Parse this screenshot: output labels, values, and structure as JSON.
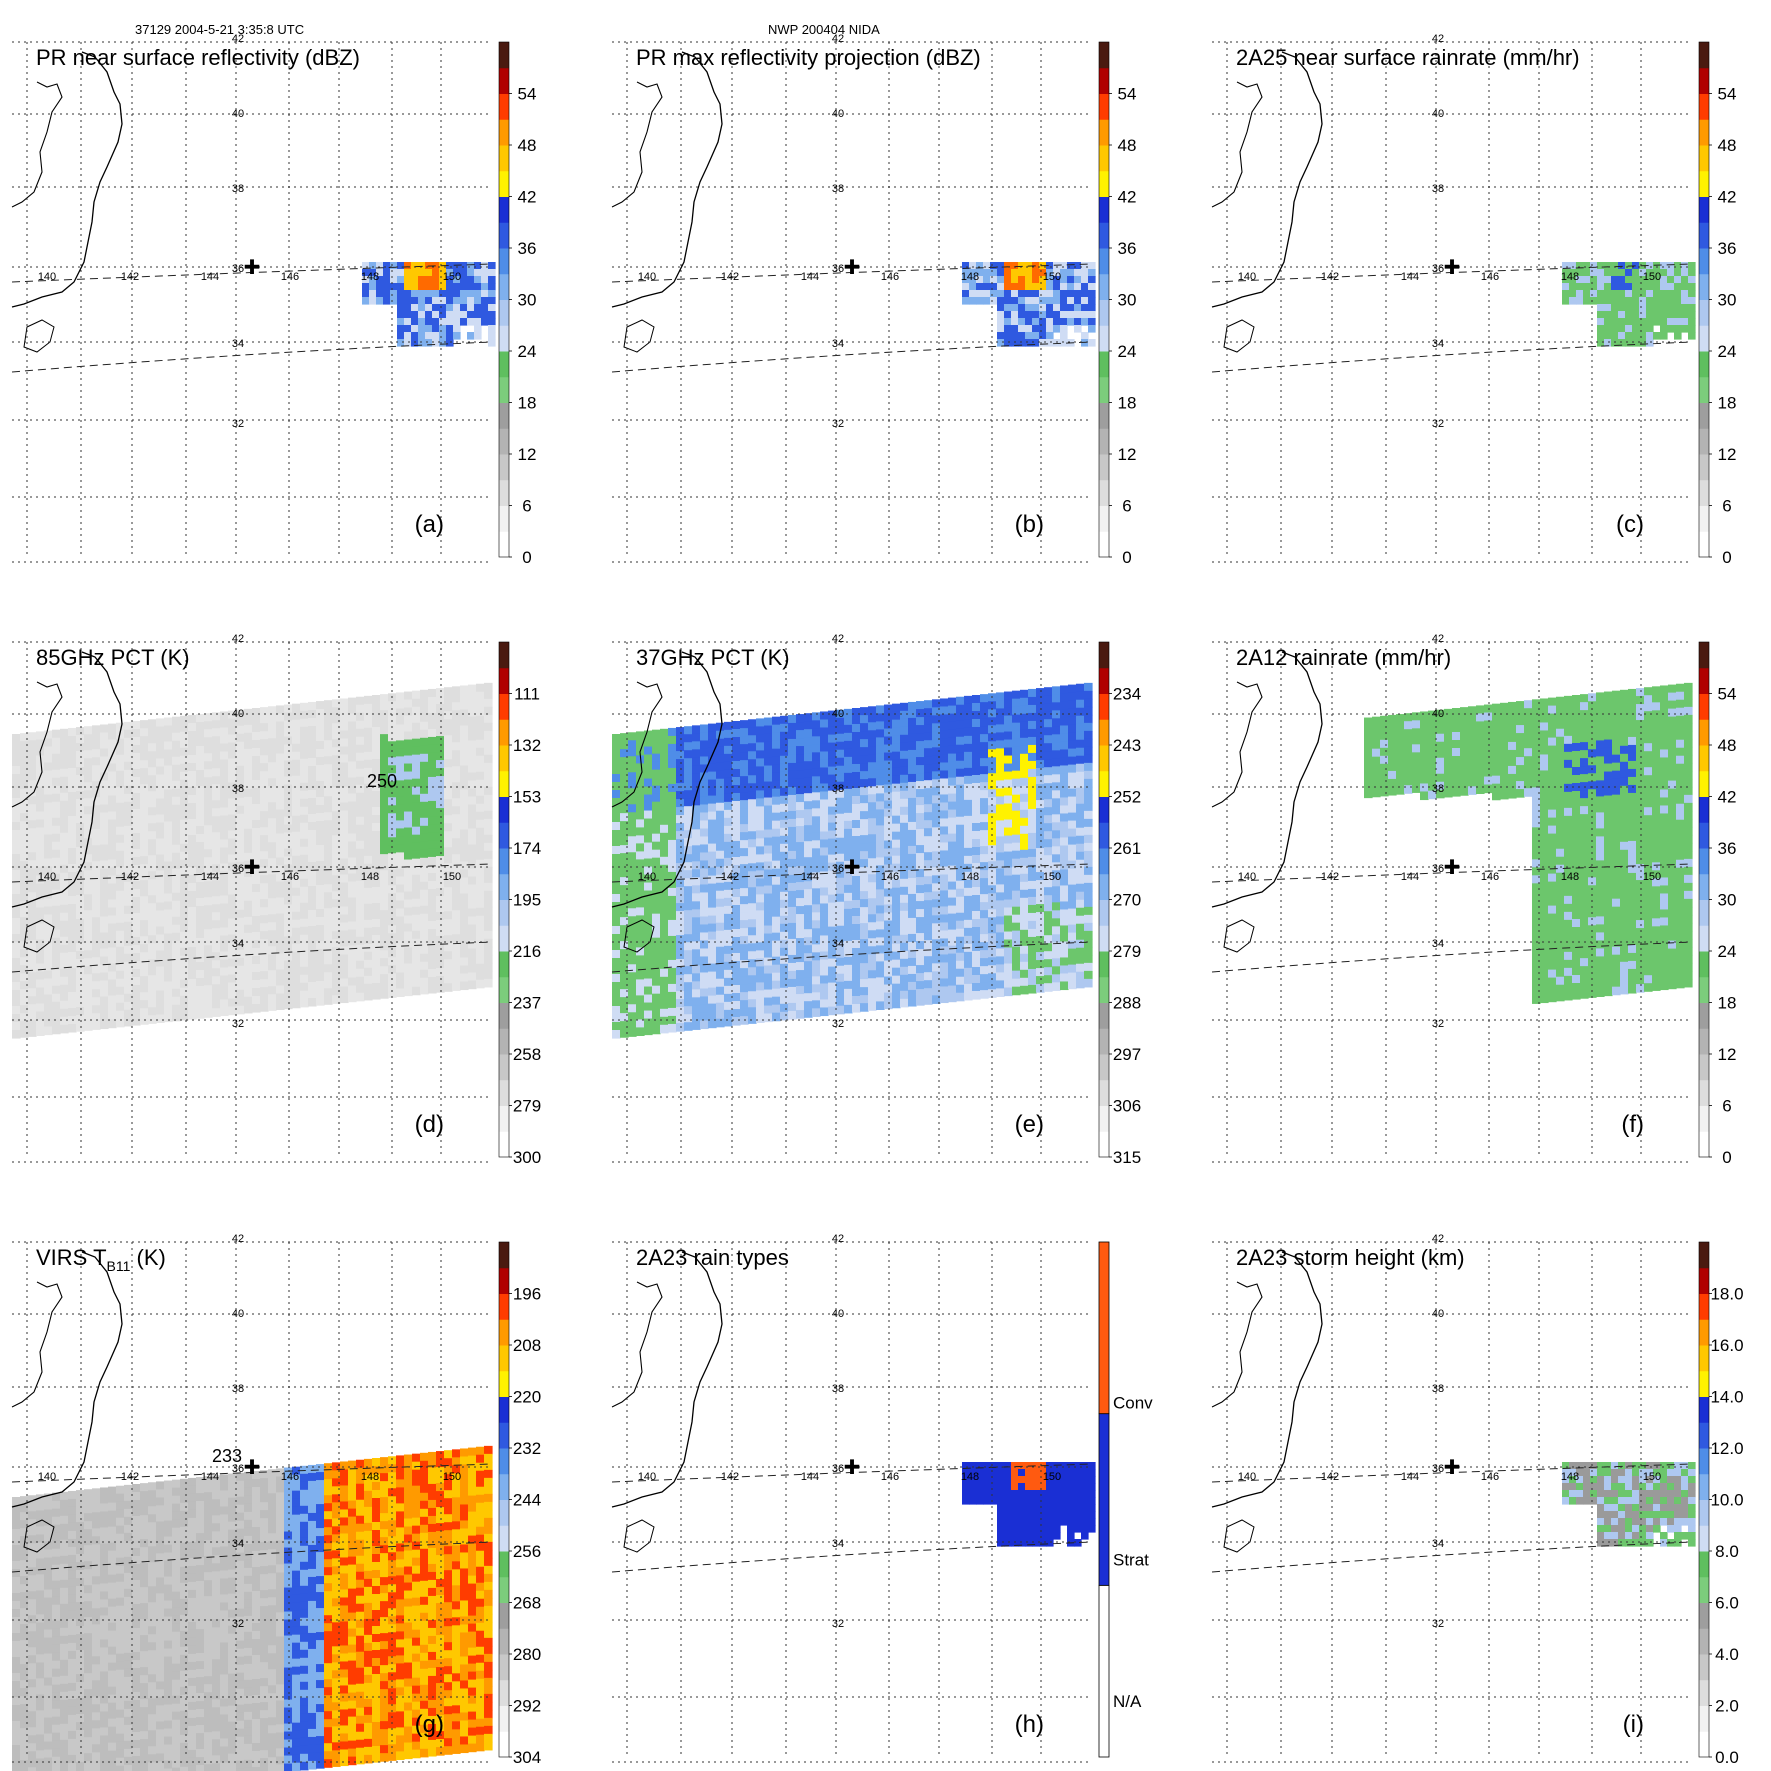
{
  "header": {
    "left": "37129 2004-5-21 3:35:8 UTC",
    "center": "NWP 200404 NIDA"
  },
  "colors": {
    "scale": [
      "#f4f4f4",
      "#dcdcdc",
      "#c8c8c8",
      "#b0b0b0",
      "#9a9a9a",
      "#6cc66c",
      "#5fbf5f",
      "#cfdcf4",
      "#aec8f0",
      "#7fb0ee",
      "#4f8de8",
      "#2f59e0",
      "#1a2fd4",
      "#fff200",
      "#ffc800",
      "#ff9a00",
      "#ff6a00",
      "#ff3c00",
      "#e01010",
      "#b00000",
      "#7a0a00",
      "#4a1a10"
    ],
    "raintype": [
      "#ffffff",
      "#1a2fd4",
      "#ff5a10"
    ]
  },
  "map": {
    "lat_labels": [
      "42",
      "40",
      "38",
      "36",
      "34",
      "32"
    ],
    "lon_labels": [
      "140",
      "142",
      "144",
      "146",
      "148",
      "150"
    ],
    "marker_symbol": "✚"
  },
  "panels": [
    {
      "id": "a",
      "title": "PR near surface reflectivity (dBZ)",
      "label": "(a)",
      "ticks": [
        "0",
        "6",
        "12",
        "18",
        "24",
        "30",
        "36",
        "42",
        "48",
        "54"
      ],
      "coverage": "pr",
      "field": "storm",
      "contour": ""
    },
    {
      "id": "b",
      "title": "PR max reflectivity projection (dBZ)",
      "label": "(b)",
      "ticks": [
        "0",
        "6",
        "12",
        "18",
        "24",
        "30",
        "36",
        "42",
        "48",
        "54"
      ],
      "coverage": "pr",
      "field": "storm",
      "contour": ""
    },
    {
      "id": "c",
      "title": "2A25 near surface rainrate (mm/hr)",
      "label": "(c)",
      "ticks": [
        "0",
        "6",
        "12",
        "18",
        "24",
        "30",
        "36",
        "42",
        "48",
        "54"
      ],
      "coverage": "pr",
      "field": "rain",
      "contour": ""
    },
    {
      "id": "d",
      "title": "85GHz PCT (K)",
      "label": "(d)",
      "ticks": [
        "300",
        "279",
        "258",
        "237",
        "216",
        "195",
        "174",
        "153",
        "132",
        "111"
      ],
      "coverage": "tmi",
      "field": "gray",
      "contour": "250"
    },
    {
      "id": "e",
      "title": "37GHz PCT (K)",
      "label": "(e)",
      "ticks": [
        "315",
        "306",
        "297",
        "288",
        "279",
        "270",
        "261",
        "252",
        "243",
        "234"
      ],
      "coverage": "tmi",
      "field": "blue",
      "contour": ""
    },
    {
      "id": "f",
      "title": "2A12 rainrate (mm/hr)",
      "label": "(f)",
      "ticks": [
        "0",
        "6",
        "12",
        "18",
        "24",
        "30",
        "36",
        "42",
        "48",
        "54"
      ],
      "coverage": "tmi",
      "field": "green",
      "contour": ""
    },
    {
      "id": "g",
      "title": "VIRS T",
      "title_sub": "B11",
      "title_end": " (K)",
      "label": "(g)",
      "ticks": [
        "304",
        "292",
        "280",
        "268",
        "256",
        "244",
        "232",
        "220",
        "208",
        "196"
      ],
      "coverage": "virs",
      "field": "ir",
      "contour": "233"
    },
    {
      "id": "h",
      "title": "2A23 rain types",
      "label": "(h)",
      "ticks": [
        "N/A",
        "Strat",
        "Conv"
      ],
      "coverage": "pr",
      "field": "raintype",
      "contour": ""
    },
    {
      "id": "i",
      "title": "2A23 storm height (km)",
      "label": "(i)",
      "ticks": [
        "0.0",
        "2.0",
        "4.0",
        "6.0",
        "8.0",
        "10.0",
        "12.0",
        "14.0",
        "16.0",
        "18.0"
      ],
      "coverage": "pr",
      "field": "height",
      "contour": ""
    }
  ]
}
